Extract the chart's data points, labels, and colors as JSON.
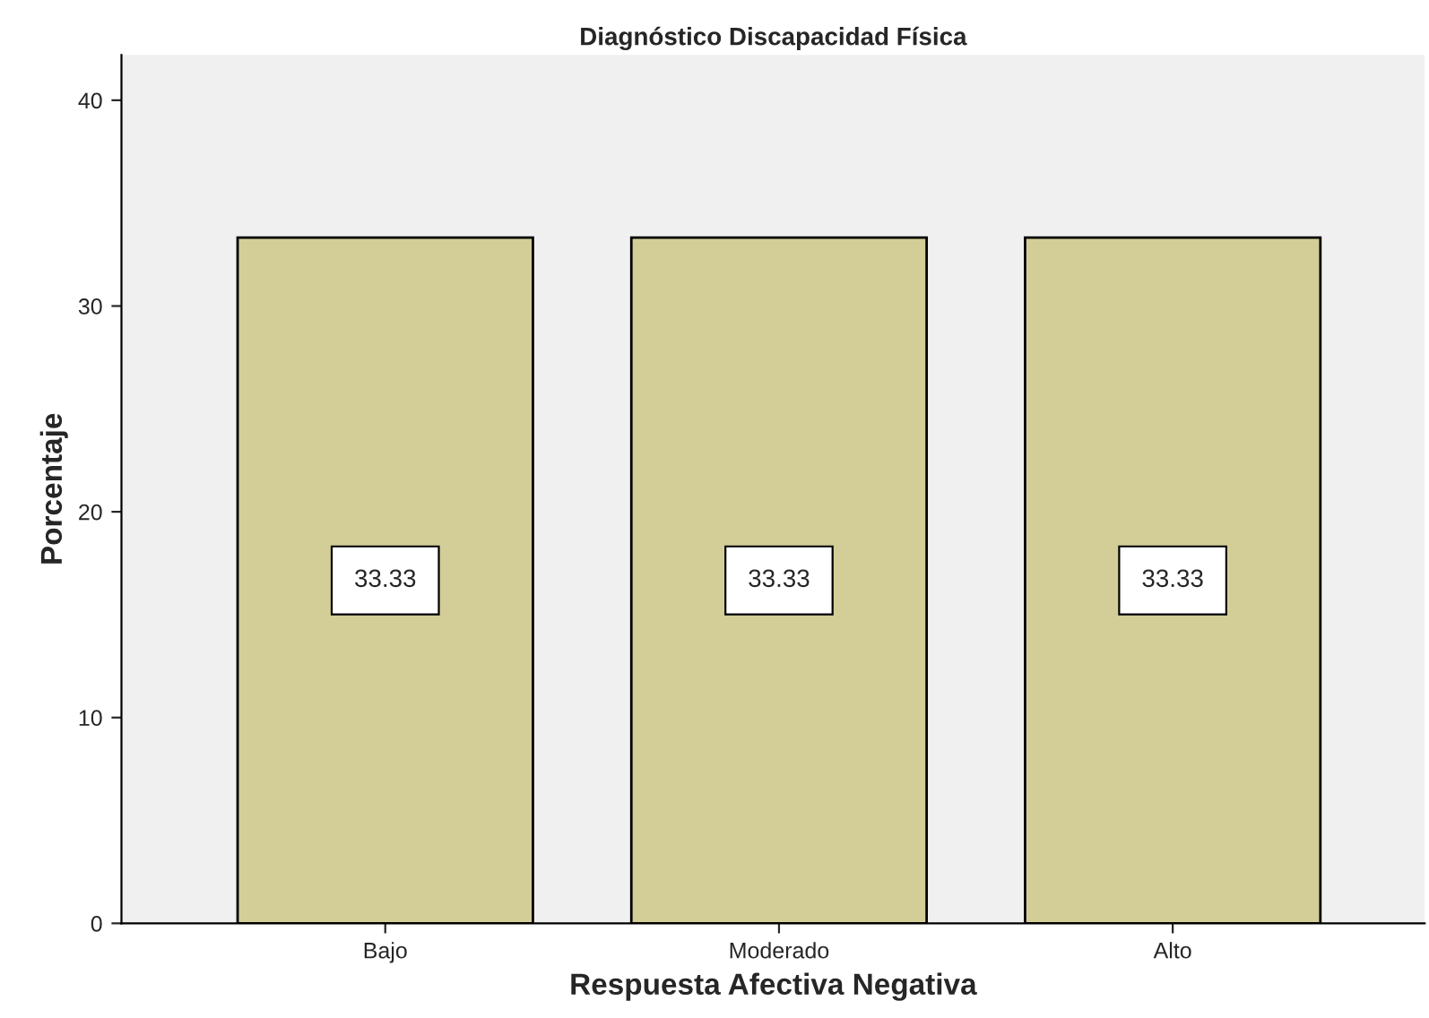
{
  "chart_data": {
    "type": "bar",
    "title": "Diagnóstico Discapacidad Física",
    "xlabel": "Respuesta Afectiva Negativa",
    "ylabel": "Porcentaje",
    "categories": [
      "Bajo",
      "Moderado",
      "Alto"
    ],
    "values": [
      33.33,
      33.33,
      33.33
    ],
    "color": "#d3ce97",
    "ylim": [
      0,
      42.2
    ],
    "yticks": [
      0,
      10,
      20,
      30,
      40
    ],
    "data_labels": true,
    "grid": false,
    "legend": false
  }
}
